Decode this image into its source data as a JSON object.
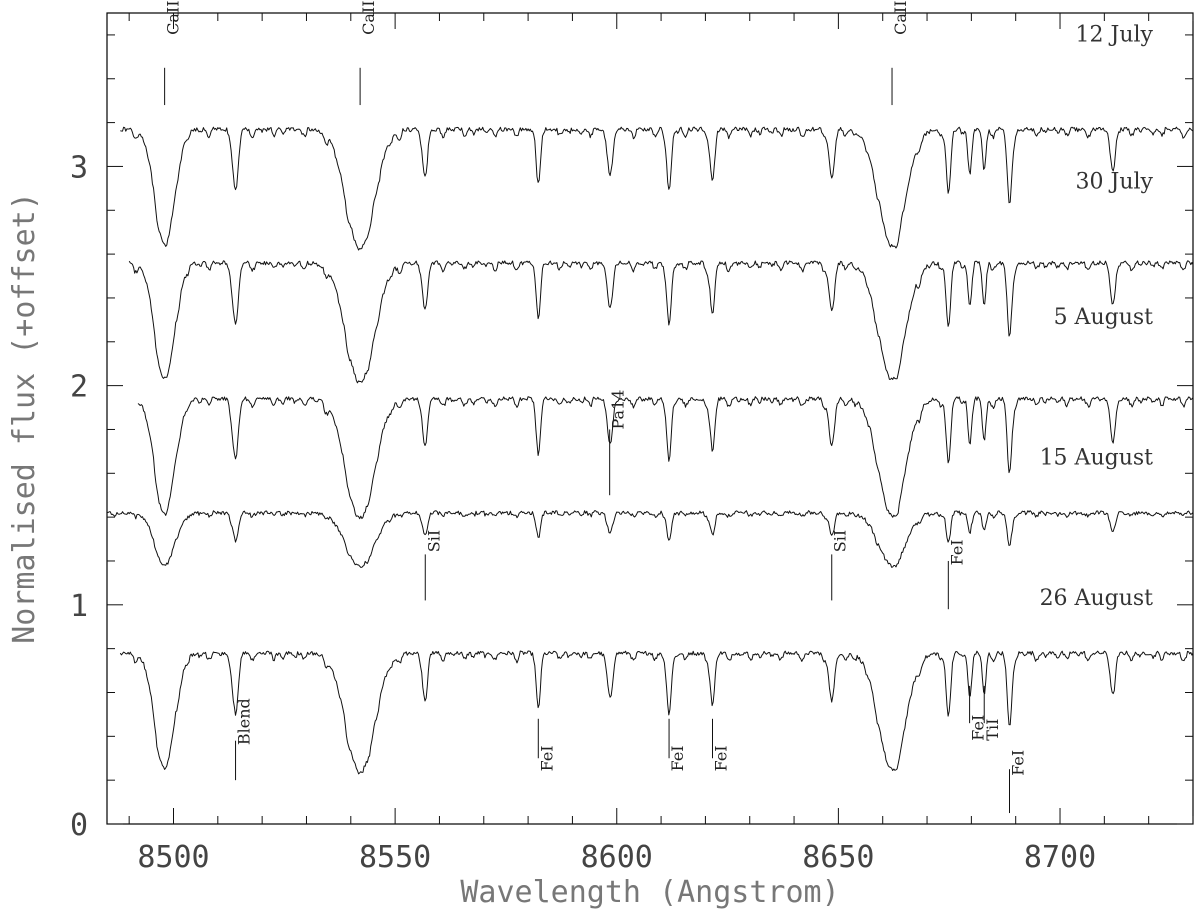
{
  "chart_data": {
    "type": "line",
    "title": "",
    "xlabel": "Wavelength (Angstrom)",
    "ylabel": "Normalised flux (+offset)",
    "xlim": [
      8485,
      8730
    ],
    "ylim": [
      0,
      3.7
    ],
    "x_ticks": [
      8500,
      8550,
      8600,
      8650,
      8700
    ],
    "y_ticks": [
      0,
      1,
      2,
      3
    ],
    "grid": false,
    "series": [
      {
        "name": "12 July",
        "offset": 2.55,
        "depth_scale": 1.0,
        "x_start": 8488,
        "x_end": 8730,
        "label_y": 3.57
      },
      {
        "name": "30 July",
        "offset": 1.94,
        "depth_scale": 1.0,
        "x_start": 8490,
        "x_end": 8730,
        "label_y": 2.9
      },
      {
        "name": "5 August",
        "offset": 1.32,
        "depth_scale": 1.0,
        "x_start": 8492,
        "x_end": 8730,
        "label_y": 2.28
      },
      {
        "name": "15 August",
        "offset": 0.8,
        "depth_scale": 0.45,
        "x_start": 8485,
        "x_end": 8730,
        "label_y": 1.64
      },
      {
        "name": "26 August",
        "offset": 0.16,
        "depth_scale": 1.0,
        "x_start": 8488,
        "x_end": 8730,
        "label_y": 1.0
      }
    ],
    "lines": [
      {
        "x": 8498.0,
        "depth": 0.85,
        "width": 2.2
      },
      {
        "x": 8542.1,
        "depth": 0.88,
        "width": 3.2
      },
      {
        "x": 8662.1,
        "depth": 0.86,
        "width": 3.0
      },
      {
        "x": 8514.0,
        "depth": 0.45,
        "width": 0.6
      },
      {
        "x": 8556.8,
        "depth": 0.35,
        "width": 0.5
      },
      {
        "x": 8582.3,
        "depth": 0.35,
        "width": 0.5
      },
      {
        "x": 8598.4,
        "depth": 0.3,
        "width": 0.6
      },
      {
        "x": 8611.8,
        "depth": 0.45,
        "width": 0.5
      },
      {
        "x": 8621.6,
        "depth": 0.38,
        "width": 0.5
      },
      {
        "x": 8648.5,
        "depth": 0.35,
        "width": 0.6
      },
      {
        "x": 8674.8,
        "depth": 0.45,
        "width": 0.5
      },
      {
        "x": 8679.6,
        "depth": 0.3,
        "width": 0.4
      },
      {
        "x": 8682.9,
        "depth": 0.3,
        "width": 0.4
      },
      {
        "x": 8688.6,
        "depth": 0.55,
        "width": 0.5
      },
      {
        "x": 8712.0,
        "depth": 0.3,
        "width": 0.5
      }
    ],
    "annotations": [
      {
        "text": "CaII",
        "x": 8498.0,
        "y_bottom": 3.28,
        "y_top": 3.45,
        "text_y": 3.6
      },
      {
        "text": "CaII",
        "x": 8542.1,
        "y_bottom": 3.28,
        "y_top": 3.45,
        "text_y": 3.6
      },
      {
        "text": "CaII",
        "x": 8662.1,
        "y_bottom": 3.28,
        "y_top": 3.45,
        "text_y": 3.6
      },
      {
        "text": "Pa14",
        "x": 8598.4,
        "y_bottom": 1.5,
        "y_top": 1.8,
        "text_y": 1.8
      },
      {
        "text": "SiI",
        "x": 8556.8,
        "y_bottom": 1.02,
        "y_top": 1.23,
        "text_y": 1.24
      },
      {
        "text": "SiI",
        "x": 8648.5,
        "y_bottom": 1.02,
        "y_top": 1.23,
        "text_y": 1.24
      },
      {
        "text": "FeI",
        "x": 8674.8,
        "y_bottom": 0.98,
        "y_top": 1.2,
        "text_y": 1.18
      },
      {
        "text": "Blend",
        "x": 8514.0,
        "y_bottom": 0.2,
        "y_top": 0.38,
        "text_y": 0.36
      },
      {
        "text": "FeI",
        "x": 8582.3,
        "y_bottom": 0.3,
        "y_top": 0.48,
        "text_y": 0.24
      },
      {
        "text": "FeI",
        "x": 8611.8,
        "y_bottom": 0.3,
        "y_top": 0.48,
        "text_y": 0.24
      },
      {
        "text": "FeI",
        "x": 8621.6,
        "y_bottom": 0.3,
        "y_top": 0.48,
        "text_y": 0.24
      },
      {
        "text": "FeI",
        "x": 8679.6,
        "y_bottom": 0.46,
        "y_top": 0.63,
        "text_y": 0.38
      },
      {
        "text": "TiI",
        "x": 8682.9,
        "y_bottom": 0.46,
        "y_top": 0.63,
        "text_y": 0.38
      },
      {
        "text": "FeI",
        "x": 8688.6,
        "y_bottom": 0.05,
        "y_top": 0.25,
        "text_y": 0.22
      }
    ]
  }
}
